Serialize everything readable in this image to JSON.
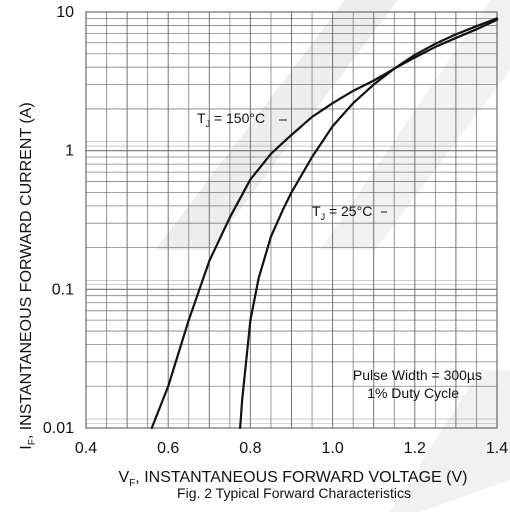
{
  "chart_data": {
    "type": "line",
    "caption": "Fig. 2 Typical Forward Characteristics",
    "xlabel": {
      "main": "V",
      "sub": "F",
      "rest": ", INSTANTANEOUS FORWARD VOLTAGE (V)"
    },
    "ylabel": {
      "main": "I",
      "sub": "F",
      "rest": ", INSTANTANEOUS FORWARD CURRENT (A)"
    },
    "xlim": [
      0.4,
      1.4
    ],
    "ylim": [
      0.01,
      10
    ],
    "yscale": "log",
    "grid": true,
    "x_ticks": [
      0.4,
      0.6,
      0.8,
      1.0,
      1.2,
      1.4
    ],
    "x_tick_labels": [
      "0.4",
      "0.6",
      "0.8",
      "1.0",
      "1.2",
      "1.4"
    ],
    "y_ticks": [
      0.01,
      0.1,
      1,
      10
    ],
    "y_tick_labels": [
      "0.01",
      "0.1",
      "1",
      "10"
    ],
    "series": [
      {
        "name": "T_J = 150°C",
        "label_main": "T",
        "label_sub": "J",
        "label_rest": " = 150°C",
        "x": [
          0.56,
          0.6,
          0.65,
          0.7,
          0.75,
          0.8,
          0.85,
          0.9,
          0.95,
          1.0,
          1.05,
          1.1,
          1.15,
          1.2,
          1.25,
          1.3,
          1.35,
          1.4
        ],
        "y": [
          0.01,
          0.02,
          0.06,
          0.16,
          0.33,
          0.62,
          0.95,
          1.3,
          1.75,
          2.2,
          2.7,
          3.2,
          3.9,
          4.7,
          5.6,
          6.5,
          7.5,
          8.8
        ]
      },
      {
        "name": "T_J = 25°C",
        "label_main": "T",
        "label_sub": "J",
        "label_rest": " = 25°C",
        "x": [
          0.775,
          0.78,
          0.8,
          0.82,
          0.85,
          0.88,
          0.9,
          0.95,
          1.0,
          1.05,
          1.1,
          1.15,
          1.2,
          1.25,
          1.3,
          1.35,
          1.4
        ],
        "y": [
          0.01,
          0.016,
          0.06,
          0.12,
          0.24,
          0.38,
          0.5,
          0.9,
          1.5,
          2.2,
          3.0,
          3.9,
          4.9,
          5.9,
          6.9,
          7.9,
          9.0
        ]
      }
    ],
    "note_lines": [
      "Pulse Width = 300µs",
      "1% Duty Cycle"
    ],
    "colors": {
      "grid": "#6b6b6b",
      "curve": "#111111",
      "text": "#111111",
      "watermark": "#d8d8d8"
    }
  }
}
